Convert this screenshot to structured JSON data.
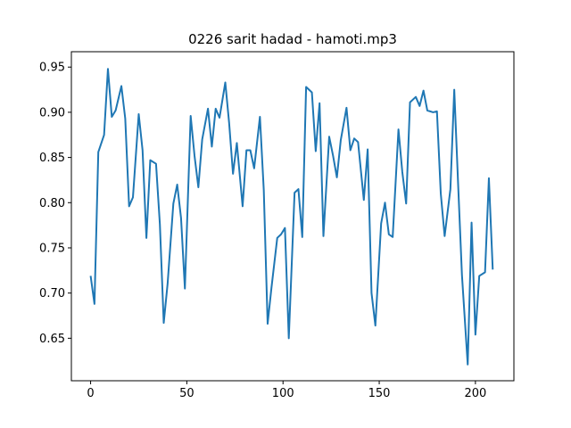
{
  "chart_data": {
    "type": "line",
    "title": "0226 sarit hadad - hamoti.mp3",
    "xlabel": "",
    "ylabel": "",
    "xlim": [
      -10,
      220
    ],
    "ylim": [
      0.603,
      0.967
    ],
    "x_ticks": [
      0,
      50,
      100,
      150,
      200
    ],
    "y_ticks": [
      0.65,
      0.7,
      0.75,
      0.8,
      0.85,
      0.9,
      0.95
    ],
    "x_tick_labels": [
      "0",
      "50",
      "100",
      "150",
      "200"
    ],
    "y_tick_labels": [
      "0.65",
      "0.70",
      "0.75",
      "0.80",
      "0.85",
      "0.90",
      "0.95"
    ],
    "grid": false,
    "line_color": "#1f77b4",
    "x": [
      0,
      2,
      4,
      7,
      9,
      11,
      13,
      16,
      18,
      20,
      22,
      25,
      27,
      29,
      31,
      34,
      36,
      38,
      40,
      43,
      45,
      47,
      49,
      52,
      54,
      56,
      58,
      61,
      63,
      65,
      67,
      70,
      72,
      74,
      76,
      79,
      81,
      83,
      85,
      88,
      90,
      92,
      94,
      97,
      99,
      101,
      103,
      106,
      108,
      110,
      112,
      115,
      117,
      119,
      121,
      124,
      126,
      128,
      130,
      133,
      135,
      137,
      139,
      142,
      144,
      146,
      148,
      151,
      153,
      155,
      157,
      160,
      162,
      164,
      166,
      169,
      171,
      173,
      175,
      178,
      180,
      182,
      184,
      187,
      189,
      191,
      193,
      196,
      198,
      200,
      202,
      205,
      207,
      209
    ],
    "values": [
      0.719,
      0.688,
      0.856,
      0.875,
      0.948,
      0.895,
      0.902,
      0.929,
      0.893,
      0.796,
      0.806,
      0.898,
      0.858,
      0.761,
      0.847,
      0.843,
      0.776,
      0.667,
      0.71,
      0.799,
      0.82,
      0.783,
      0.705,
      0.896,
      0.852,
      0.817,
      0.87,
      0.904,
      0.862,
      0.904,
      0.894,
      0.933,
      0.888,
      0.832,
      0.866,
      0.796,
      0.858,
      0.858,
      0.838,
      0.895,
      0.814,
      0.666,
      0.706,
      0.761,
      0.765,
      0.772,
      0.65,
      0.811,
      0.815,
      0.762,
      0.928,
      0.922,
      0.857,
      0.91,
      0.763,
      0.873,
      0.852,
      0.828,
      0.869,
      0.905,
      0.858,
      0.871,
      0.867,
      0.803,
      0.859,
      0.7,
      0.664,
      0.777,
      0.8,
      0.765,
      0.762,
      0.881,
      0.834,
      0.799,
      0.911,
      0.917,
      0.907,
      0.924,
      0.902,
      0.9,
      0.901,
      0.81,
      0.763,
      0.815,
      0.925,
      0.821,
      0.72,
      0.621,
      0.778,
      0.654,
      0.719,
      0.723,
      0.827,
      0.726
    ]
  }
}
